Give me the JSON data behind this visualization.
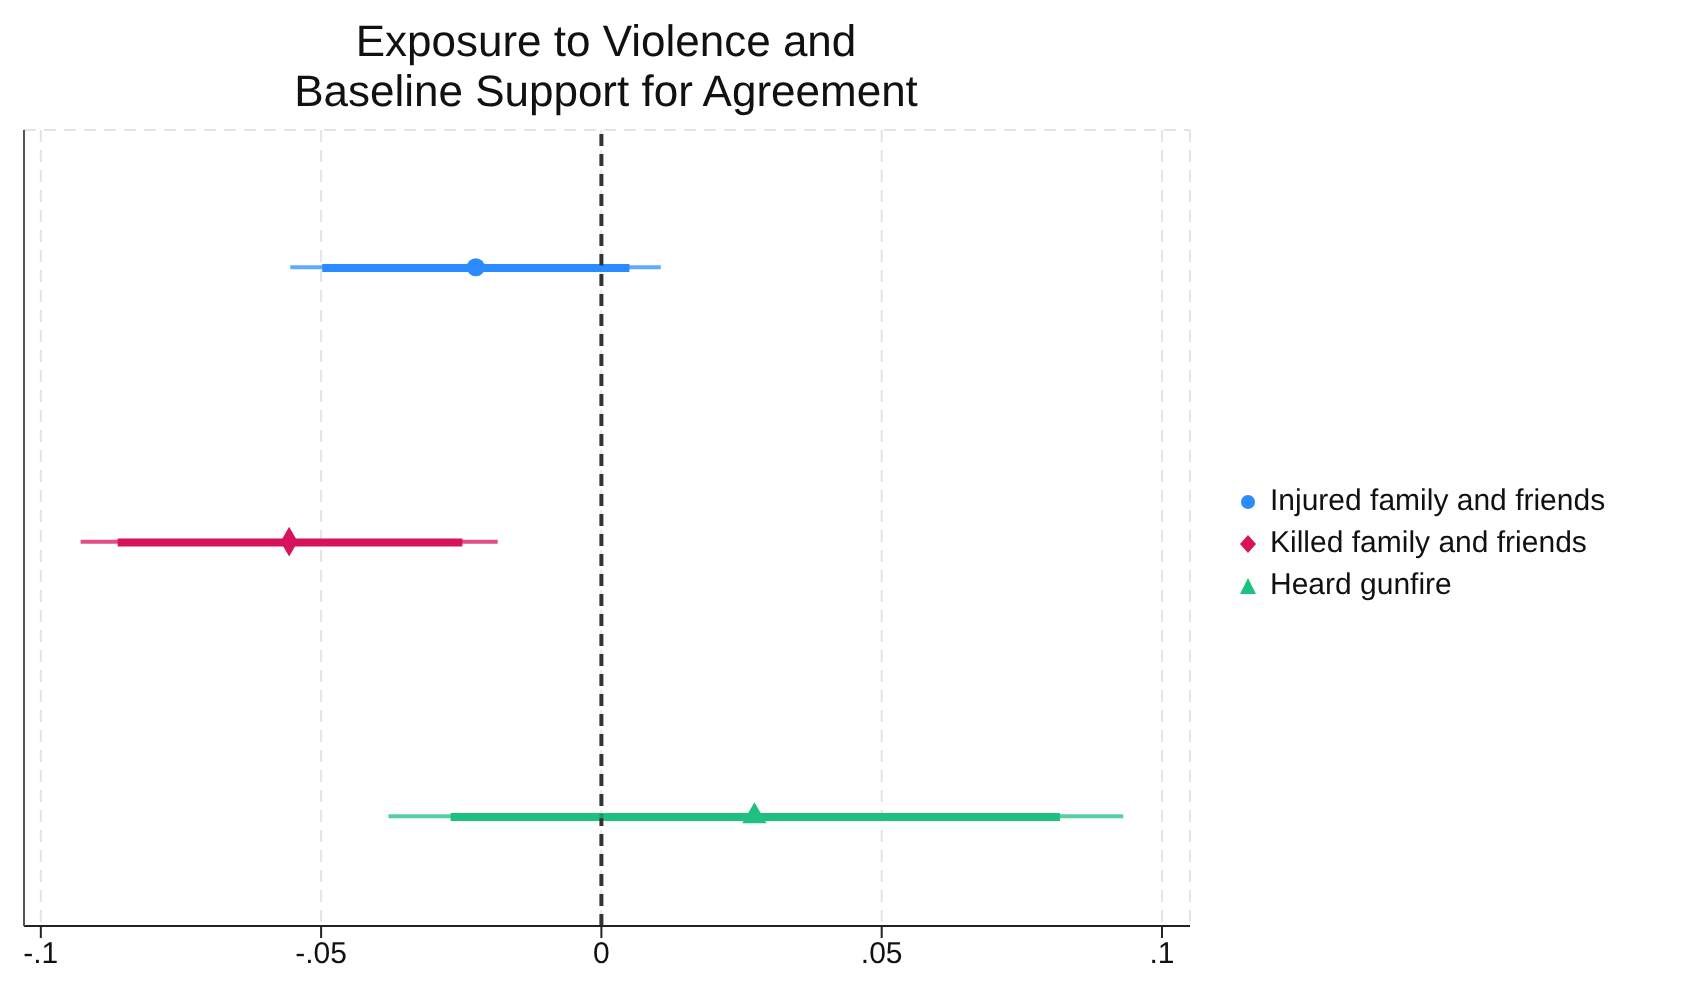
{
  "chart_data": {
    "type": "scatter",
    "title": "Exposure to Violence and Baseline Support for Agreement",
    "orientation": "horizontal",
    "categories": [
      null,
      null,
      null
    ],
    "series": [
      {
        "type": "bar",
        "colors": [
          "#2a8cff",
          "#d6135c",
          "#1fc080"
        ],
        "base": [
          -0.0498,
          -0.0863,
          -0.0269
        ],
        "values": [
          0.0548,
          0.0615,
          0.1087
        ]
      },
      {
        "name": "Injured family and friends",
        "color": "#2a8cff",
        "marker": "circle",
        "values": [
          -0.0224,
          null,
          null
        ],
        "errors": [
          [
            -0.0555,
            0.0106
          ],
          null,
          null
        ]
      },
      {
        "name": "Killed family and friends",
        "color": "#d6135c",
        "marker": "diamond",
        "values": [
          null,
          -0.0557,
          null
        ],
        "errors": [
          null,
          [
            -0.0929,
            -0.0185
          ],
          null
        ]
      },
      {
        "name": "Heard gunfire",
        "color": "#1fc080",
        "marker": "triangle",
        "values": [
          null,
          null,
          0.0273
        ],
        "errors": [
          null,
          null,
          [
            -0.038,
            0.0931
          ]
        ]
      }
    ],
    "xlim": [
      -0.103,
      0.105
    ],
    "xticks": [
      {
        "value": -0.1,
        "label": "-.1"
      },
      {
        "value": -0.05,
        "label": "-.05"
      },
      0,
      {
        "value": 0.05,
        "label": ".05"
      },
      {
        "value": 0.1,
        "label": ".1"
      }
    ],
    "ref_lines": [
      {
        "axis": "x",
        "value": 0,
        "label": null,
        "color": "#333333",
        "line_style": "dashed"
      }
    ],
    "grid": true,
    "legend": "right"
  }
}
